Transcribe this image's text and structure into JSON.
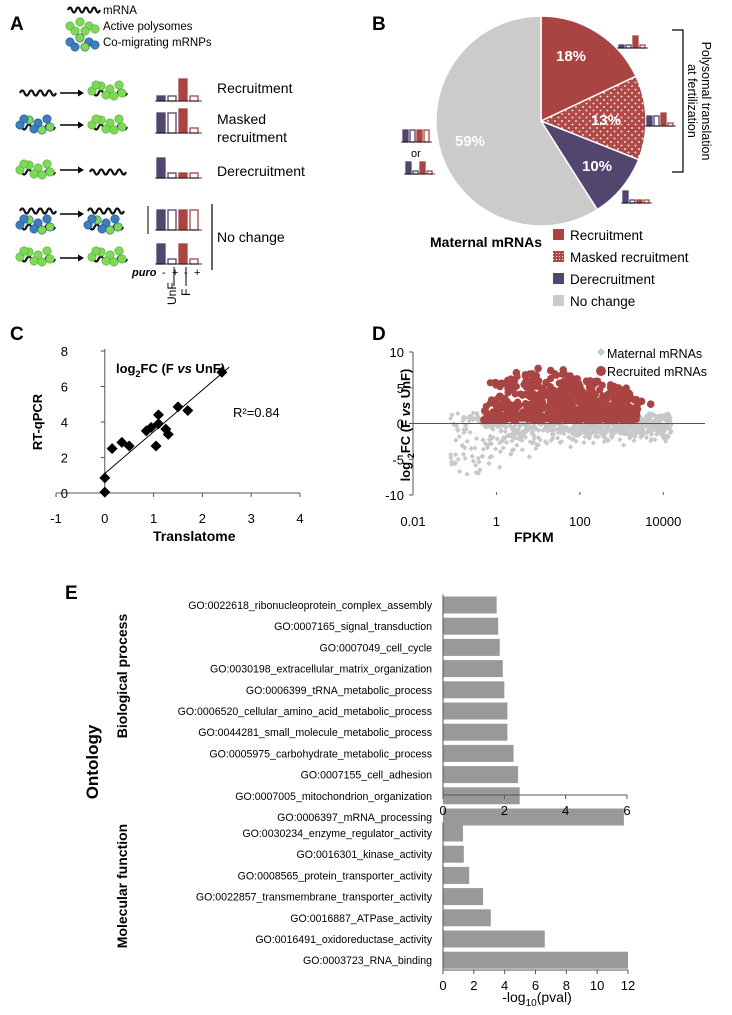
{
  "panel_labels": {
    "a": "A",
    "b": "B",
    "c": "C",
    "d": "D",
    "e": "E"
  },
  "panelA": {
    "legend": [
      "mRNA",
      "Active polysomes",
      "Co-migrating mRNPs"
    ],
    "rows": [
      "Recruitment",
      "Masked",
      "recruitment",
      "Derecruitment",
      "No change"
    ],
    "puro": "puro",
    "puro_minus": "-",
    "puro_plus": "+",
    "unf": "UnF",
    "f": "F"
  },
  "panelB": {
    "title": "Maternal mRNAs",
    "bracket_label_1": "Polysomal translation",
    "bracket_label_2": "at fertilization",
    "or_text": "or",
    "legend": [
      "Recruitment",
      "Masked recruitment",
      "Derecruitment",
      "No change"
    ]
  },
  "panelC": {
    "ylabel": "RT-qPCR",
    "xlabel": "Translatome",
    "inset": "log",
    "inset_sub": "2",
    "inset_rest": "FC (F ",
    "inset_vs": "vs",
    "inset_end": " UnF)",
    "r2": "R²=0.84"
  },
  "panelD": {
    "ylabel_pre": "log ",
    "ylabel_sub": "2",
    "ylabel_mid": "FC (F ",
    "ylabel_vs": "vs",
    "ylabel_end": " UnF)",
    "xlabel": "FPKM",
    "legend": [
      "Maternal mRNAs",
      "Recruited mRNAs"
    ]
  },
  "panelE": {
    "ontology": "Ontology",
    "group1": "Biological process",
    "group2": "Molecular function",
    "xlabel_pre": "-log",
    "xlabel_sub": "10",
    "xlabel_post": "(pval)"
  },
  "chart_data": [
    {
      "id": "B",
      "type": "pie",
      "labels": [
        "Recruitment",
        "Masked recruitment",
        "Derecruitment",
        "No change"
      ],
      "values": [
        18,
        13,
        10,
        59
      ],
      "value_labels": [
        "18%",
        "13%",
        "10%",
        "59%"
      ],
      "colors": [
        "#a94442",
        "#b6514f",
        "#52456e",
        "#cbcbcb"
      ]
    },
    {
      "id": "C",
      "type": "scatter",
      "xlim": [
        -1,
        4
      ],
      "ylim": [
        0,
        8
      ],
      "xticks": [
        -1,
        0,
        1,
        2,
        3,
        4
      ],
      "yticks": [
        0,
        2,
        4,
        6,
        8
      ],
      "points": [
        [
          0,
          0.05
        ],
        [
          0,
          0.85
        ],
        [
          0.15,
          2.5
        ],
        [
          0.35,
          2.85
        ],
        [
          0.5,
          2.65
        ],
        [
          0.85,
          3.5
        ],
        [
          0.95,
          3.7
        ],
        [
          1.05,
          2.65
        ],
        [
          1.1,
          4.4
        ],
        [
          1.1,
          3.9
        ],
        [
          1.25,
          3.6
        ],
        [
          1.3,
          3.3
        ],
        [
          1.5,
          4.85
        ],
        [
          1.7,
          4.65
        ],
        [
          2.4,
          6.8
        ]
      ],
      "fit": {
        "slope": 2.35,
        "intercept": 1.1
      }
    },
    {
      "id": "D",
      "type": "scatter",
      "x_scale": "log10",
      "xlim": [
        0.01,
        100000
      ],
      "ylim": [
        -10,
        10
      ],
      "xtick_labels": [
        "0.01",
        "1",
        "100",
        "10000"
      ],
      "yticks": [
        -10,
        -5,
        0,
        5,
        10
      ],
      "series": [
        {
          "name": "Maternal mRNAs",
          "color": "#c8c8c8",
          "marker": "diamond"
        },
        {
          "name": "Recruited mRNAs",
          "color": "#a94442",
          "marker": "circle"
        }
      ],
      "recruited_outer_points": [
        [
          0.5,
          0.5
        ],
        [
          0.8,
          2.9
        ],
        [
          1.2,
          3.8
        ],
        [
          2,
          5.6
        ],
        [
          3,
          7.1
        ],
        [
          5,
          6.6
        ],
        [
          10,
          7.7
        ],
        [
          20,
          7.4
        ],
        [
          40,
          7.5
        ],
        [
          60,
          5.8
        ],
        [
          100,
          5.2
        ],
        [
          200,
          4.4
        ],
        [
          400,
          3.4
        ],
        [
          1000,
          2.6
        ],
        [
          3000,
          3.1
        ],
        [
          5000,
          2.7
        ]
      ]
    },
    {
      "id": "E1",
      "type": "bar",
      "orientation": "horizontal",
      "xlim": [
        0,
        6
      ],
      "xticks": [
        0,
        2,
        4,
        6
      ],
      "categories": [
        "GO:0022618_ribonucleoprotein_complex_assembly",
        "GO:0007165_signal_transduction",
        "GO:0007049_cell_cycle",
        "GO:0030198_extracellular_matrix_organization",
        "GO:0006399_tRNA_metabolic_process",
        "GO:0006520_cellular_amino_acid_metabolic_process",
        "GO:0044281_small_molecule_metabolic_process",
        "GO:0005975_carbohydrate_metabolic_process",
        "GO:0007155_cell_adhesion",
        "GO:0007005_mitochondrion_organization",
        "GO:0006397_mRNA_processing"
      ],
      "values": [
        1.75,
        1.8,
        1.85,
        1.95,
        2.0,
        2.1,
        2.1,
        2.3,
        2.45,
        2.5,
        5.9
      ]
    },
    {
      "id": "E2",
      "type": "bar",
      "orientation": "horizontal",
      "xlim": [
        0,
        12
      ],
      "xticks": [
        0,
        2,
        4,
        6,
        8,
        10,
        12
      ],
      "categories": [
        "GO:0030234_enzyme_regulator_activity",
        "GO:0016301_kinase_activity",
        "GO:0008565_protein_transporter_activity",
        "GO:0022857_transmembrane_transporter_activity",
        "GO:0016887_ATPase_activity",
        "GO:0016491_oxidoreductase_activity",
        "GO:0003723_RNA_binding"
      ],
      "values": [
        1.3,
        1.35,
        1.7,
        2.6,
        3.1,
        6.6,
        12.0
      ]
    }
  ]
}
